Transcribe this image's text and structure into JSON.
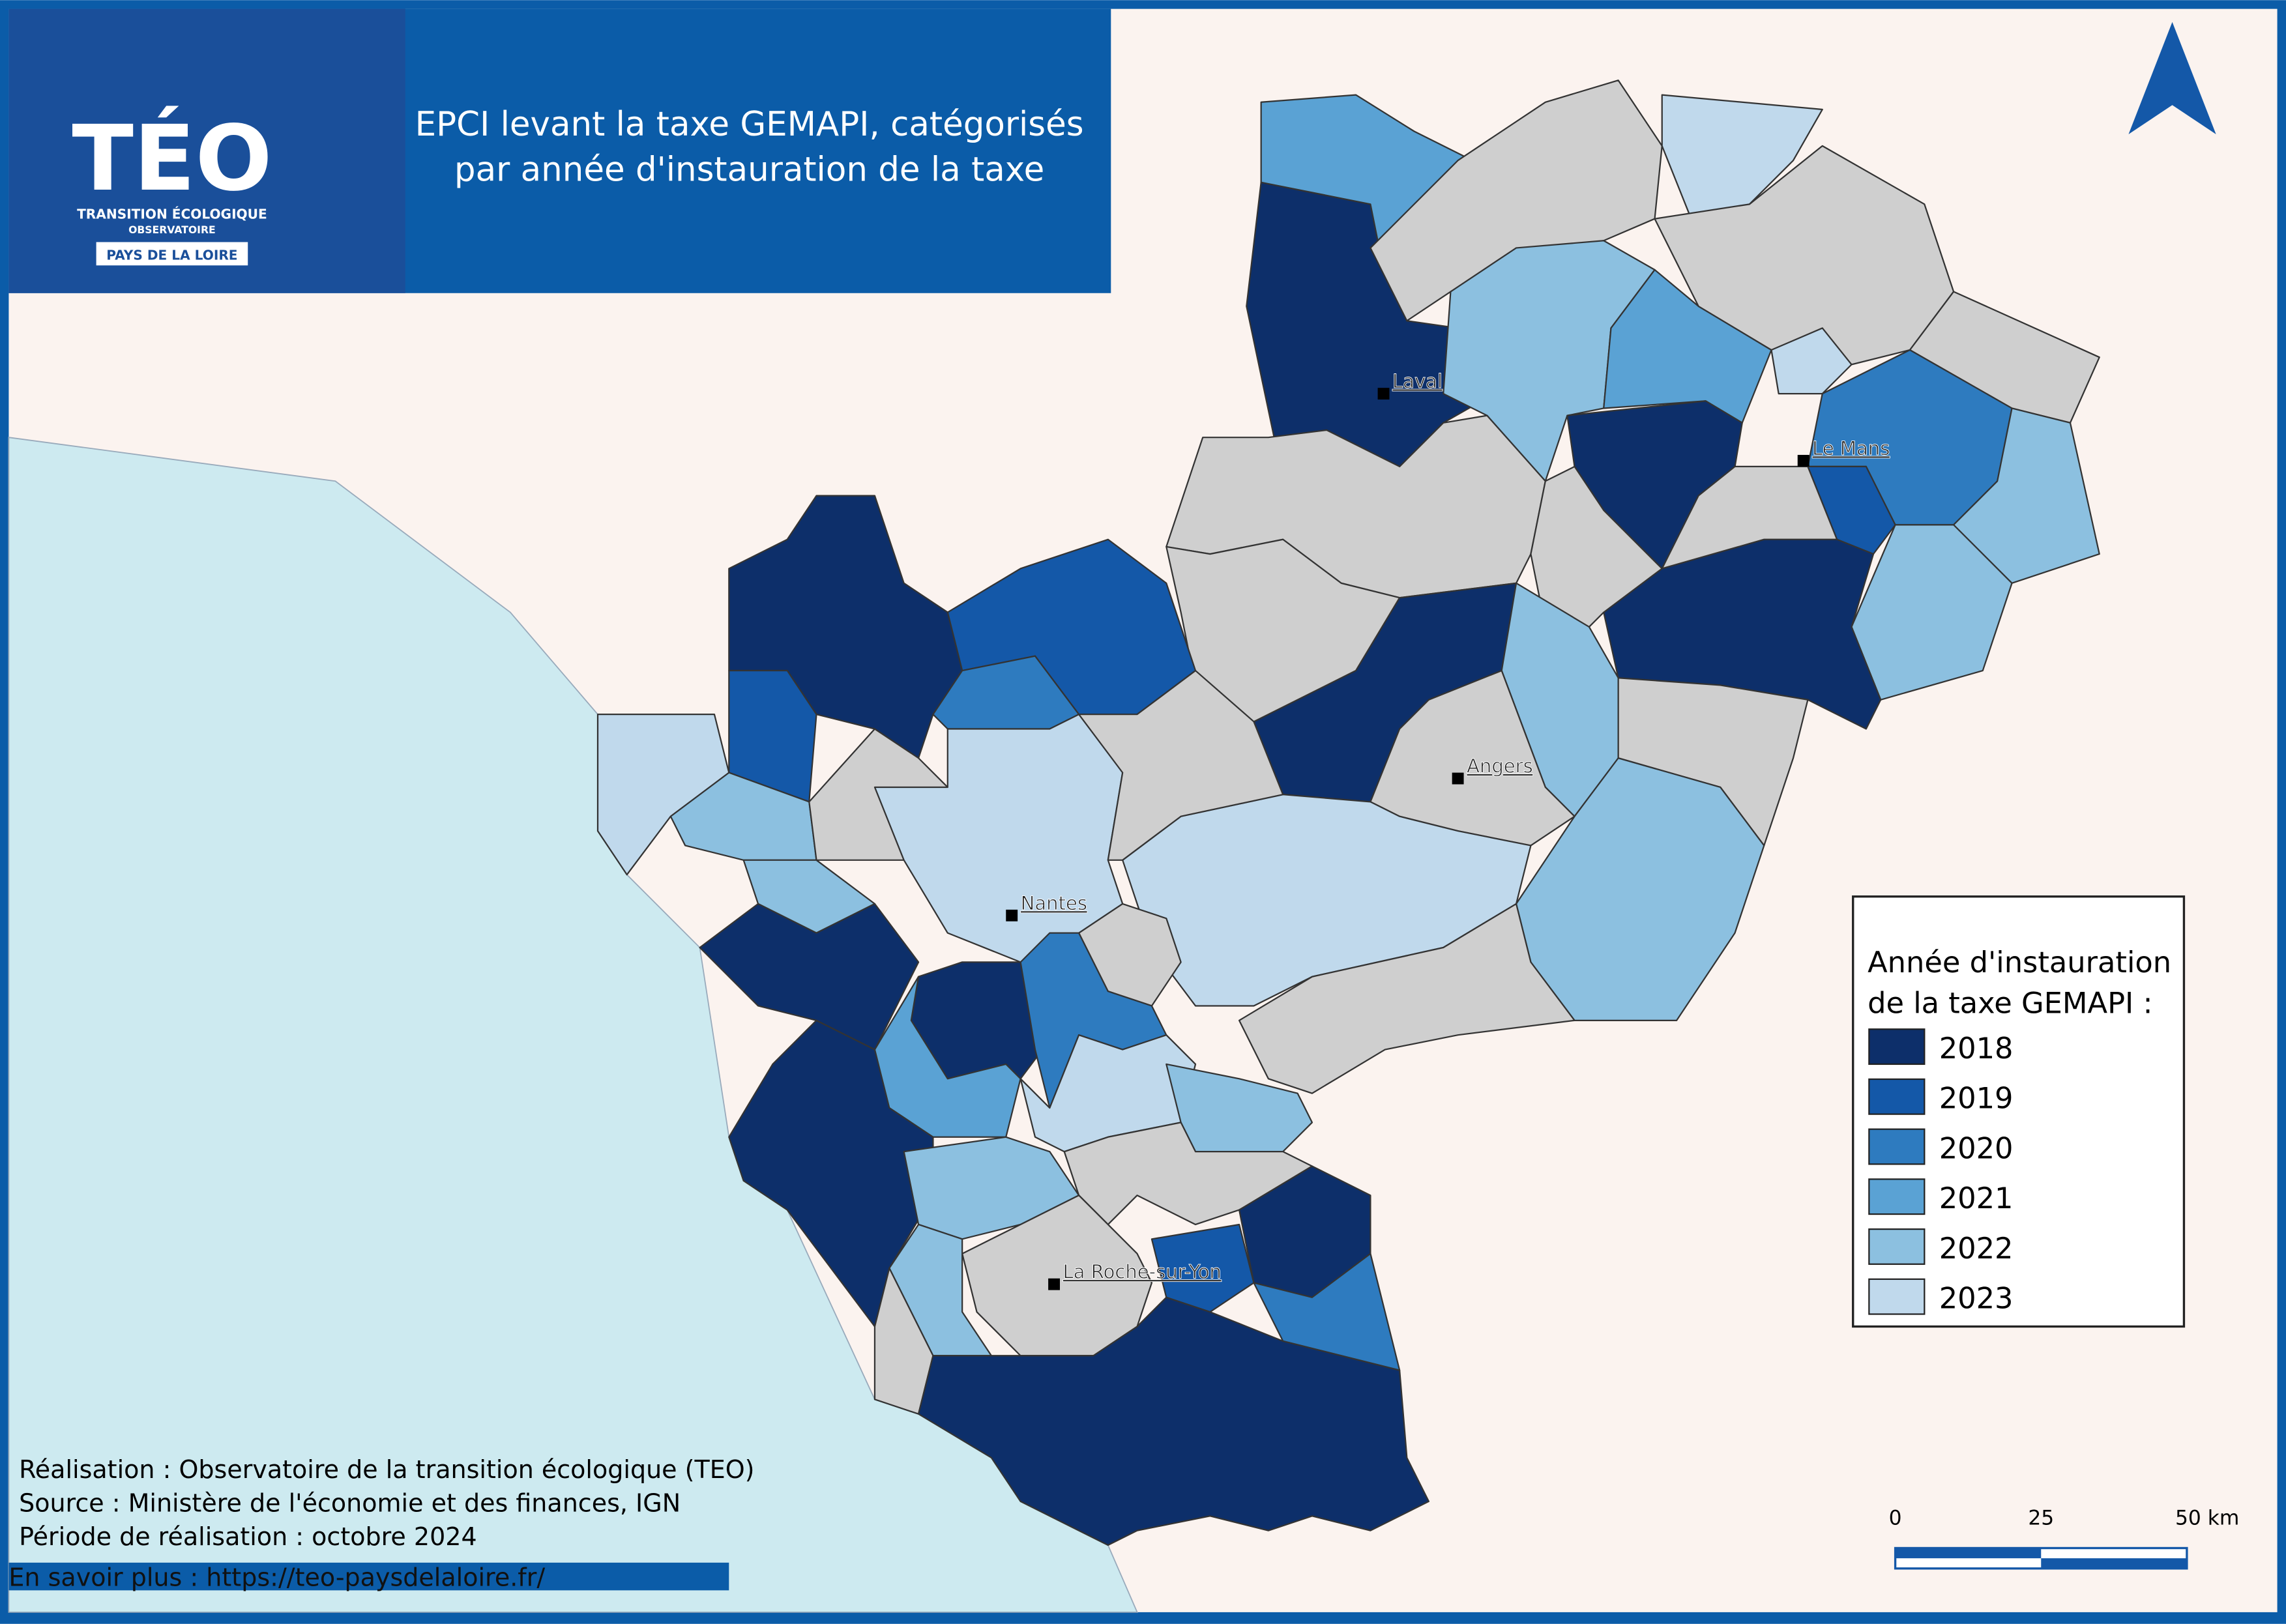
{
  "header": {
    "logo": {
      "title": "TÉO",
      "line1": "TRANSITION ÉCOLOGIQUE",
      "line2": "OBSERVATOIRE",
      "region": "PAYS DE LA LOIRE"
    },
    "title_lines": [
      "EPCI levant la taxe GEMAPI, catégorisés",
      "par année d'instauration de la taxe"
    ]
  },
  "map": {
    "cities": [
      "Laval",
      "Le Mans",
      "Angers",
      "Nantes",
      "La Roche-sur-Yon"
    ]
  },
  "legend": {
    "title_lines": [
      "Année d'instauration",
      "de la taxe GEMAPI :"
    ],
    "items": [
      {
        "label": "2018",
        "color": "#0d2f6a"
      },
      {
        "label": "2019",
        "color": "#1458a8"
      },
      {
        "label": "2020",
        "color": "#2e7bbf"
      },
      {
        "label": "2021",
        "color": "#5aa2d4"
      },
      {
        "label": "2022",
        "color": "#8cc0e0"
      },
      {
        "label": "2023",
        "color": "#c0d9ec"
      }
    ]
  },
  "scale_bar": {
    "labels": [
      "0",
      "25",
      "50 km"
    ]
  },
  "credits": {
    "lines": [
      "Réalisation : Observatoire de la transition écologique (TEO)",
      "Source : Ministère de l'économie et des finances, IGN",
      "Période de réalisation : octobre 2024"
    ],
    "link": "En savoir plus : https://teo-paysdelaloire.fr/"
  }
}
